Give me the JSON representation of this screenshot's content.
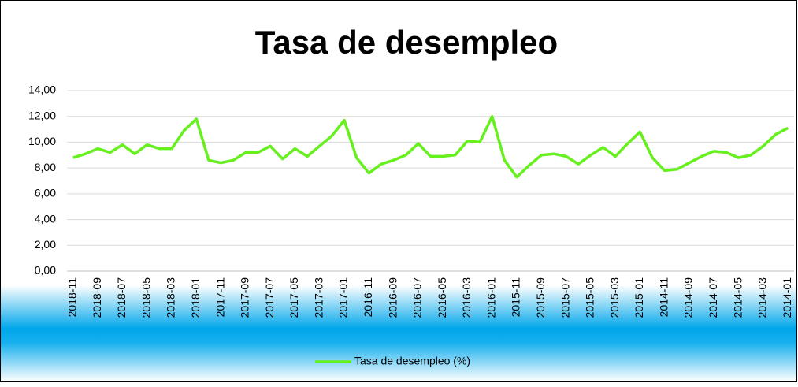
{
  "chart_data": {
    "type": "line",
    "title": "Tasa de desempleo",
    "categories": [
      "2018-11",
      null,
      "2018-09",
      null,
      "2018-07",
      null,
      "2018-05",
      null,
      "2018-03",
      null,
      "2018-01",
      null,
      "2017-11",
      null,
      "2017-09",
      null,
      "2017-07",
      null,
      "2017-05",
      null,
      "2017-03",
      null,
      "2017-01",
      null,
      "2016-11",
      null,
      "2016-09",
      null,
      "2016-07",
      null,
      "2016-05",
      null,
      "2016-03",
      null,
      "2016-01",
      null,
      "2015-11",
      null,
      "2015-09",
      null,
      "2015-07",
      null,
      "2015-05",
      null,
      "2015-03",
      null,
      "2015-01",
      null,
      "2014-11",
      null,
      "2014-09",
      null,
      "2014-07",
      null,
      "2014-05",
      null,
      "2014-03",
      null,
      "2014-01"
    ],
    "series": [
      {
        "name": "Tasa de desempleo (%)",
        "color": "#66f01e",
        "values": [
          8.8,
          9.1,
          9.5,
          9.2,
          9.8,
          9.1,
          9.8,
          9.5,
          9.5,
          10.9,
          11.8,
          8.6,
          8.4,
          8.6,
          9.2,
          9.2,
          9.7,
          8.7,
          9.5,
          8.9,
          9.7,
          10.5,
          11.7,
          8.8,
          7.6,
          8.3,
          8.6,
          9.0,
          9.9,
          8.9,
          8.9,
          9.0,
          10.1,
          10.0,
          12.0,
          8.6,
          7.3,
          8.2,
          9.0,
          9.1,
          8.9,
          8.3,
          9.0,
          9.6,
          8.9,
          9.9,
          10.8,
          8.8,
          7.8,
          7.9,
          8.4,
          8.9,
          9.3,
          9.2,
          8.8,
          9.0,
          9.7,
          10.6,
          11.1
        ]
      }
    ],
    "ylim": [
      0,
      14
    ],
    "yticks": [
      {
        "value": 0,
        "label": "0,00"
      },
      {
        "value": 2,
        "label": "2,00"
      },
      {
        "value": 4,
        "label": "4,00"
      },
      {
        "value": 6,
        "label": "6,00"
      },
      {
        "value": 8,
        "label": "8,00"
      },
      {
        "value": 10,
        "label": "10,00"
      },
      {
        "value": 12,
        "label": "12,00"
      },
      {
        "value": 14,
        "label": "14,00"
      }
    ],
    "grid": true,
    "legend": "bottom"
  }
}
